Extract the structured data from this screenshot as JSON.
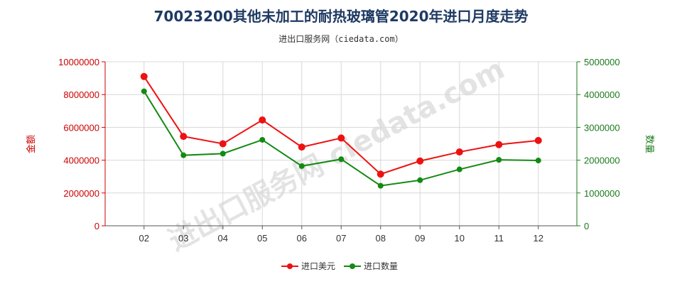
{
  "chart_data": {
    "type": "line",
    "title": "70023200其他未加工的耐热玻璃管2020年进口月度走势",
    "subtitle": "进出口服务网（ciedata.com）",
    "watermark": "进出口服务网 ciedata.com",
    "categories": [
      "02",
      "03",
      "04",
      "05",
      "06",
      "07",
      "08",
      "09",
      "10",
      "11",
      "12"
    ],
    "y_left": {
      "label": "金额",
      "ylim": [
        0,
        10000000
      ],
      "ticks": [
        "0",
        "2000000",
        "4000000",
        "6000000",
        "8000000",
        "10000000"
      ],
      "color": "#cc0000"
    },
    "y_right": {
      "label": "数量",
      "ylim": [
        0,
        5000000
      ],
      "ticks": [
        "0",
        "1000000",
        "2000000",
        "3000000",
        "4000000",
        "5000000"
      ],
      "color": "#1a7a1a"
    },
    "series": [
      {
        "name": "进口美元",
        "axis": "left",
        "color": "#ee1111",
        "values": [
          9100000,
          5450000,
          5000000,
          6450000,
          4800000,
          5350000,
          3150000,
          3950000,
          4500000,
          4950000,
          5200000
        ]
      },
      {
        "name": "进口数量",
        "axis": "right",
        "color": "#138a13",
        "values": [
          4100000,
          2150000,
          2200000,
          2620000,
          1820000,
          2030000,
          1220000,
          1390000,
          1720000,
          2010000,
          1990000
        ]
      }
    ],
    "grid": true,
    "legend_position": "bottom-center"
  }
}
